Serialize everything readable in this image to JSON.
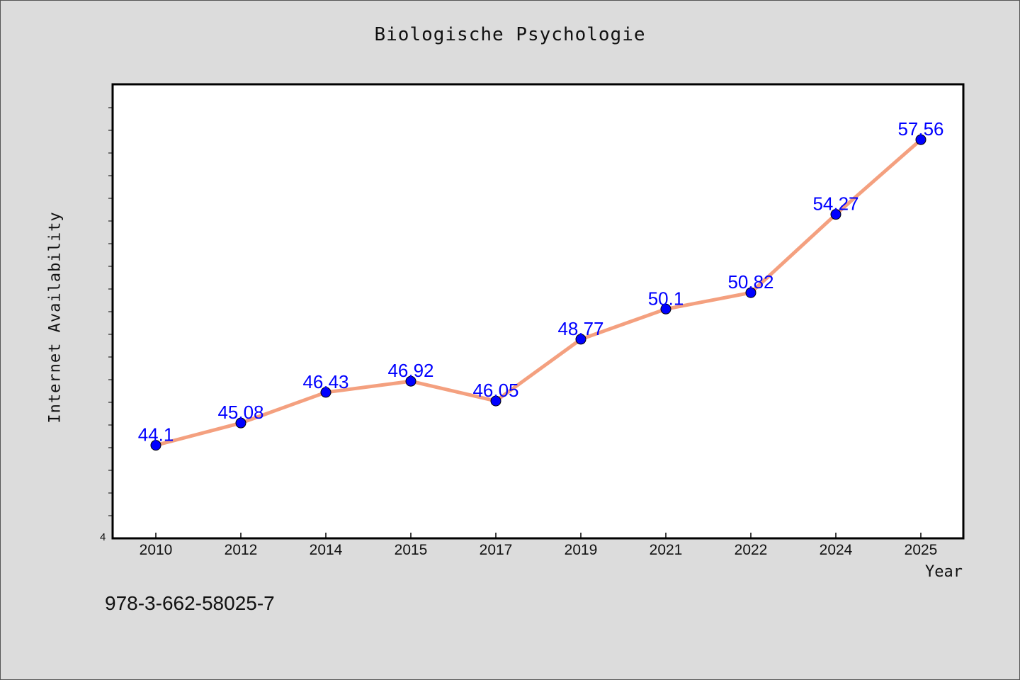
{
  "chart_data": {
    "type": "line",
    "title": "Biologische Psychologie",
    "xlabel": "Year",
    "ylabel": "Internet Availability",
    "categories": [
      "2010",
      "2012",
      "2014",
      "2015",
      "2017",
      "2019",
      "2021",
      "2022",
      "2024",
      "2025"
    ],
    "series": [
      {
        "values": [
          44.1,
          45.08,
          46.43,
          46.92,
          46.05,
          48.77,
          50.1,
          50.82,
          54.27,
          57.56
        ],
        "labels": [
          "44.1",
          "45.08",
          "46.43",
          "46.92",
          "46.05",
          "48.77",
          "50.1",
          "50.82",
          "54.27",
          "57.56"
        ],
        "line_color": "#f4a07f",
        "marker_color": "#0000ff"
      }
    ],
    "y_tick_label": "4",
    "ylim": [
      40,
      60
    ],
    "label_color": "#0000ff",
    "grid": false,
    "legend": false
  },
  "footnote": "978-3-662-58025-7"
}
